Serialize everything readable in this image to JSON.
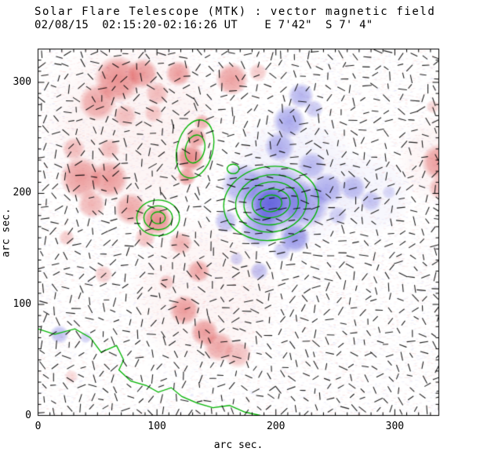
{
  "title": {
    "line1": "Solar Flare Telescope (MTK) : vector magnetic field",
    "line2": "02/08/15  02:15:20-02:16:26 UT    E 7'42\"  S 7' 4\""
  },
  "axes": {
    "xlabel": "arc sec.",
    "ylabel": "arc sec.",
    "x_ticks": [
      0,
      100,
      200,
      300
    ],
    "y_ticks": [
      0,
      100,
      200,
      300
    ],
    "x_range": [
      0,
      337
    ],
    "y_range": [
      0,
      330
    ],
    "major_tick": 100,
    "minor_tick": 10
  },
  "colors": {
    "positive_rgb": "215,45,45",
    "negative_rgb": "70,70,215",
    "contour": "#00b400",
    "vector": "#000000",
    "frame": "#000000",
    "background": "#ffffff"
  },
  "chart_data": {
    "type": "heatmap",
    "description": "Solar vector magnetogram: red = positive polarity longitudinal field, blue = negative polarity, green lines = field-strength contours and magnetic neutral line, short black segments = transverse field vectors",
    "x_units": "arc sec.",
    "y_units": "arc sec.",
    "region_format": "[x_arcsec, y_arcsec, radius_arcsec, peak_alpha]",
    "red_regions": [
      [
        67,
        303,
        20,
        0.5
      ],
      [
        50,
        282,
        16,
        0.4
      ],
      [
        88,
        308,
        13,
        0.45
      ],
      [
        118,
        308,
        11,
        0.45
      ],
      [
        100,
        290,
        10,
        0.3
      ],
      [
        73,
        270,
        10,
        0.28
      ],
      [
        163,
        303,
        14,
        0.45
      ],
      [
        185,
        309,
        8,
        0.25
      ],
      [
        97,
        272,
        8,
        0.25
      ],
      [
        36,
        214,
        18,
        0.45
      ],
      [
        60,
        213,
        16,
        0.45
      ],
      [
        45,
        190,
        12,
        0.35
      ],
      [
        78,
        186,
        14,
        0.4
      ],
      [
        100,
        176,
        13,
        0.55
      ],
      [
        90,
        160,
        9,
        0.3
      ],
      [
        24,
        160,
        7,
        0.25
      ],
      [
        30,
        240,
        10,
        0.3
      ],
      [
        60,
        240,
        9,
        0.28
      ],
      [
        128,
        232,
        12,
        0.55
      ],
      [
        133,
        250,
        9,
        0.45
      ],
      [
        125,
        215,
        8,
        0.45
      ],
      [
        138,
        264,
        7,
        0.35
      ],
      [
        120,
        155,
        10,
        0.35
      ],
      [
        135,
        130,
        10,
        0.4
      ],
      [
        123,
        95,
        13,
        0.45
      ],
      [
        140,
        75,
        12,
        0.45
      ],
      [
        152,
        62,
        13,
        0.4
      ],
      [
        168,
        55,
        12,
        0.3
      ],
      [
        108,
        120,
        7,
        0.25
      ],
      [
        55,
        127,
        8,
        0.25
      ],
      [
        338,
        228,
        16,
        0.45
      ],
      [
        338,
        205,
        10,
        0.3
      ],
      [
        332,
        278,
        6,
        0.2
      ],
      [
        28,
        35,
        6,
        0.18
      ],
      [
        80,
        260,
        80,
        0.06
      ],
      [
        140,
        110,
        65,
        0.05
      ],
      [
        340,
        230,
        40,
        0.05
      ]
    ],
    "blue_regions": [
      [
        200,
        196,
        30,
        0.5
      ],
      [
        195,
        190,
        15,
        0.65
      ],
      [
        172,
        208,
        18,
        0.4
      ],
      [
        225,
        190,
        20,
        0.45
      ],
      [
        186,
        168,
        16,
        0.45
      ],
      [
        216,
        160,
        13,
        0.55
      ],
      [
        243,
        204,
        14,
        0.4
      ],
      [
        203,
        242,
        13,
        0.4
      ],
      [
        211,
        265,
        14,
        0.45
      ],
      [
        221,
        288,
        11,
        0.4
      ],
      [
        232,
        276,
        8,
        0.3
      ],
      [
        265,
        205,
        11,
        0.35
      ],
      [
        280,
        193,
        9,
        0.3
      ],
      [
        295,
        201,
        6,
        0.2
      ],
      [
        186,
        130,
        8,
        0.35
      ],
      [
        167,
        141,
        6,
        0.25
      ],
      [
        18,
        73,
        8,
        0.35
      ],
      [
        40,
        70,
        5,
        0.25
      ],
      [
        158,
        175,
        10,
        0.35
      ],
      [
        230,
        225,
        12,
        0.35
      ],
      [
        205,
        148,
        8,
        0.3
      ],
      [
        252,
        180,
        8,
        0.25
      ],
      [
        215,
        210,
        60,
        0.07
      ],
      [
        280,
        200,
        35,
        0.05
      ]
    ],
    "contour_sets": [
      {
        "cx": 196,
        "cy": 191,
        "rot": -8,
        "rings": [
          [
            9,
            7
          ],
          [
            16,
            12
          ],
          [
            23,
            18
          ],
          [
            30,
            24
          ],
          [
            40,
            31
          ]
        ]
      },
      {
        "cx": 101,
        "cy": 178,
        "rot": 0,
        "rings": [
          [
            6,
            5
          ],
          [
            12,
            10
          ],
          [
            18,
            15
          ]
        ]
      },
      {
        "cx": 132,
        "cy": 240,
        "rot": 15,
        "rings": [
          [
            8,
            12
          ],
          [
            15,
            25
          ]
        ]
      },
      {
        "cx": 164,
        "cy": 222,
        "rot": 0,
        "rings": [
          [
            5,
            4
          ]
        ]
      }
    ],
    "neutral_line": [
      [
        0,
        78
      ],
      [
        14,
        73
      ],
      [
        31,
        78
      ],
      [
        44,
        70
      ],
      [
        53,
        57
      ],
      [
        66,
        63
      ],
      [
        72,
        50
      ],
      [
        68,
        41
      ],
      [
        78,
        31
      ],
      [
        91,
        27
      ],
      [
        101,
        21
      ],
      [
        112,
        25
      ],
      [
        121,
        17
      ],
      [
        134,
        11
      ],
      [
        147,
        7
      ],
      [
        161,
        9
      ],
      [
        174,
        3
      ],
      [
        187,
        0
      ]
    ],
    "vector_field": {
      "grid_step": 10,
      "jitter": 3,
      "length_min": 4,
      "length_max": 7.5,
      "seed": 7,
      "aligned_region": {
        "cx": 196,
        "cy": 191,
        "radius": 48,
        "angle_deg": 0,
        "spread_deg": 25
      }
    },
    "noise": {
      "seed": 99,
      "count": 16000,
      "red_fraction": 0.62,
      "alpha_min": 0.02,
      "alpha_max": 0.09
    }
  }
}
